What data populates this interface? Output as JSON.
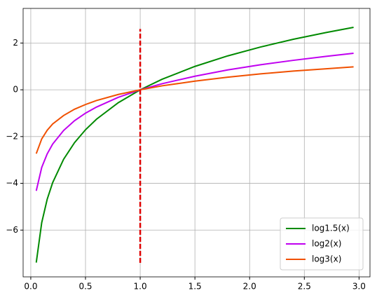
{
  "chart_data": {
    "type": "line",
    "x": [
      0.05,
      0.1,
      0.15,
      0.2,
      0.3,
      0.4,
      0.5,
      0.6,
      0.8,
      1.0,
      1.2,
      1.5,
      1.8,
      2.1,
      2.4,
      2.7,
      2.95
    ],
    "series": [
      {
        "name": "log1.5(x)",
        "color": "#008a00",
        "values": [
          -7.39,
          -5.68,
          -4.68,
          -3.97,
          -2.97,
          -2.26,
          -1.71,
          -1.26,
          -0.55,
          0,
          0.45,
          1.0,
          1.45,
          1.83,
          2.16,
          2.45,
          2.67
        ]
      },
      {
        "name": "log2(x)",
        "color": "#c000f0",
        "values": [
          -4.32,
          -3.32,
          -2.74,
          -2.32,
          -1.74,
          -1.32,
          -1.0,
          -0.74,
          -0.32,
          0,
          0.26,
          0.58,
          0.85,
          1.07,
          1.26,
          1.43,
          1.56
        ]
      },
      {
        "name": "log3(x)",
        "color": "#f05000",
        "values": [
          -2.73,
          -2.1,
          -1.73,
          -1.46,
          -1.1,
          -0.83,
          -0.63,
          -0.46,
          -0.2,
          0,
          0.17,
          0.37,
          0.54,
          0.68,
          0.8,
          0.9,
          0.98
        ]
      },
      {
        "x": [
          1,
          1
        ],
        "values": [
          -7.4,
          2.6
        ],
        "color": "#e00000",
        "dashed": true
      }
    ],
    "xlim": [
      -0.07,
      3.1
    ],
    "ylim": [
      -8.0,
      3.48
    ],
    "xticks": [
      {
        "value": 0,
        "label": "0.0"
      },
      {
        "value": 0.5,
        "label": "0.5"
      },
      {
        "value": 1,
        "label": "1.0"
      },
      {
        "value": 1.5,
        "label": "1.5"
      },
      {
        "value": 2,
        "label": "2.0"
      },
      {
        "value": 2.5,
        "label": "2.5"
      },
      {
        "value": 3,
        "label": "3.0"
      }
    ],
    "yticks": [
      {
        "value": -6,
        "label": "−6"
      },
      {
        "value": -4,
        "label": "−4"
      },
      {
        "value": -2,
        "label": "−2"
      },
      0,
      2
    ],
    "grid": true,
    "legend": "lower right"
  }
}
